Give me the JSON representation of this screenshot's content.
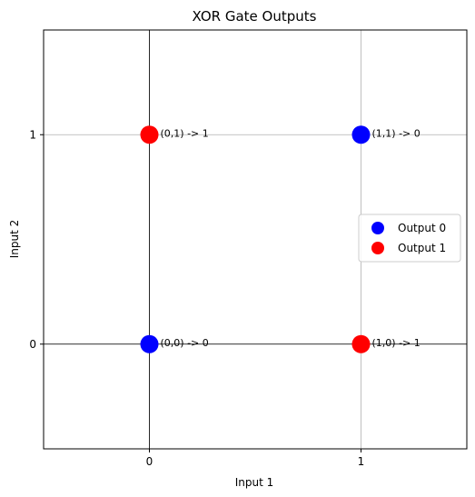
{
  "chart_data": {
    "type": "scatter",
    "title": "XOR Gate Outputs",
    "xlabel": "Input 1",
    "ylabel": "Input 2",
    "xlim": [
      -0.5,
      1.5
    ],
    "ylim": [
      -0.5,
      1.5
    ],
    "xticks": [
      0,
      1
    ],
    "yticks": [
      0,
      1
    ],
    "xtick_labels": [
      "0",
      "1"
    ],
    "ytick_labels": [
      "0",
      "1"
    ],
    "grid": true,
    "reference_lines": {
      "x": 0,
      "y": 0
    },
    "legend": {
      "position": "right"
    },
    "series": [
      {
        "name": "Output 0",
        "color": "#0000ff",
        "points": [
          {
            "x": 0,
            "y": 0,
            "label": "(0,0) -> 0"
          },
          {
            "x": 1,
            "y": 1,
            "label": "(1,1) -> 0"
          }
        ]
      },
      {
        "name": "Output 1",
        "color": "#ff0000",
        "points": [
          {
            "x": 0,
            "y": 1,
            "label": "(0,1) -> 1"
          },
          {
            "x": 1,
            "y": 0,
            "label": "(1,0) -> 1"
          }
        ]
      }
    ]
  }
}
